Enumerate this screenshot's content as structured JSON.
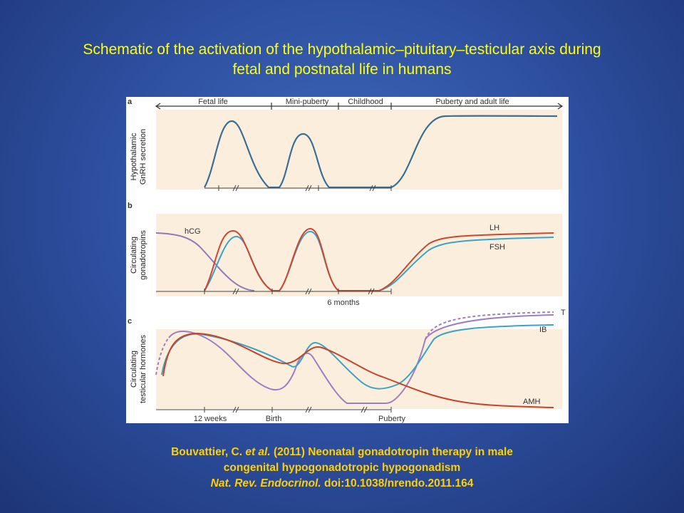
{
  "title": {
    "line1": "Schematic of the activation of the hypothalamic–pituitary–testicular axis during",
    "line2": "fetal and postnatal life in humans"
  },
  "figure": {
    "panel_a": {
      "letter": "a",
      "ylabel_1": "Hypothalamic",
      "ylabel_2": "GnRH secretion",
      "phases": [
        "Fetal life",
        "Mini-puberty",
        "Childhood",
        "Puberty and adult life"
      ]
    },
    "panel_b": {
      "letter": "b",
      "ylabel_1": "Circulating",
      "ylabel_2": "gonadotropins",
      "labels": {
        "hcg": "hCG",
        "lh": "LH",
        "fsh": "FSH"
      },
      "axis_label": "6 months"
    },
    "panel_c": {
      "letter": "c",
      "ylabel_1": "Circulating",
      "ylabel_2": "testicular hormones",
      "labels": {
        "t": "T",
        "ib": "IB",
        "amh": "AMH"
      },
      "axis_labels": [
        "12 weeks",
        "Birth",
        "Puberty"
      ]
    },
    "colors": {
      "panel_bg": "#fbeedd",
      "gnrh": "#3a6f95",
      "lh": "#d2452c",
      "fsh": "#3aa3c8",
      "hcg": "#8f7ab5",
      "t": "#9d7ec4",
      "ib": "#3aa3c8",
      "amh": "#c8432a"
    }
  },
  "citation": {
    "authors": "Bouvattier, C.",
    "etal": "et al.",
    "rest": "(2011) Neonatal gonadotropin therapy in male",
    "line2": "congenital hypogonadotropic hypogonadism",
    "journal": "Nat. Rev. Endocrinol.",
    "doi": "doi:10.1038/nrendo.2011.164"
  }
}
